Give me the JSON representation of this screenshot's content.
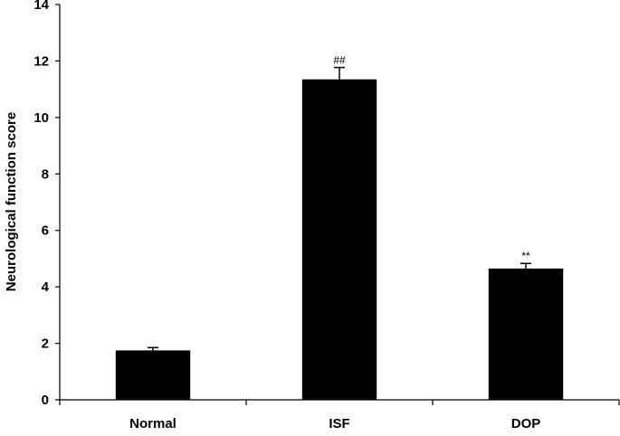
{
  "chart_data": {
    "type": "bar",
    "categories": [
      "Normal",
      "ISF",
      "DOP"
    ],
    "values": [
      1.75,
      11.35,
      4.65
    ],
    "errors": [
      0.1,
      0.42,
      0.18
    ],
    "annotations": [
      "",
      "##",
      "**"
    ],
    "title": "",
    "xlabel": "",
    "ylabel": "Neurological function score",
    "ylim": [
      0,
      14
    ],
    "yticks": [
      0,
      2,
      4,
      6,
      8,
      10,
      12,
      14
    ],
    "grid": false,
    "bar_color": "#000000"
  }
}
